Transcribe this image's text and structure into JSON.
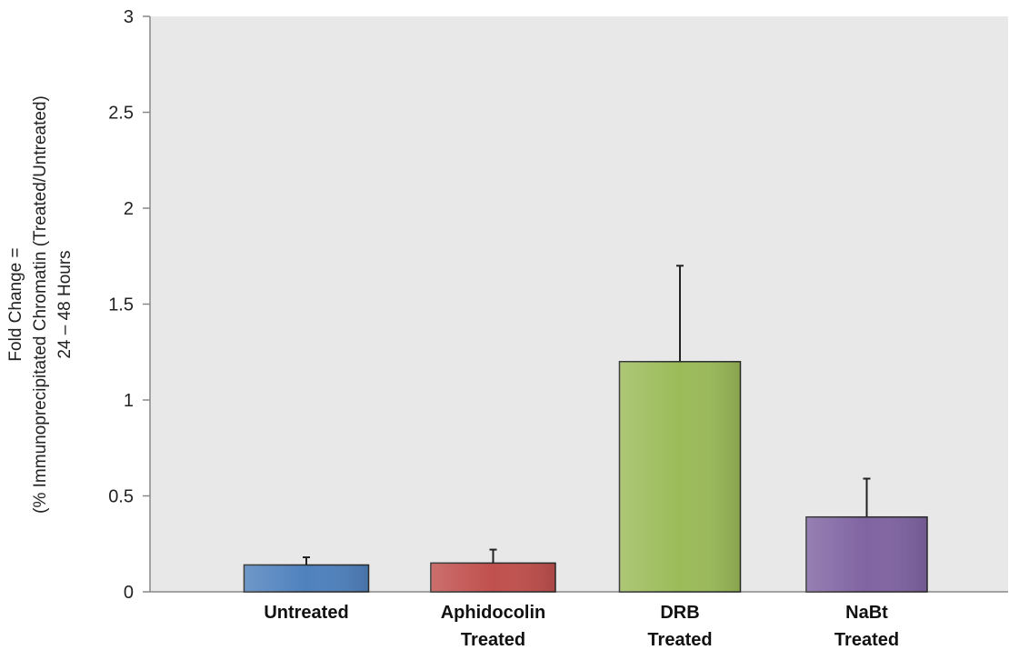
{
  "chart_data": {
    "type": "bar",
    "categories": [
      [
        "Untreated"
      ],
      [
        "Aphidocolin",
        "Treated"
      ],
      [
        "DRB",
        "Treated"
      ],
      [
        "NaBt",
        "Treated"
      ]
    ],
    "values": [
      0.14,
      0.15,
      1.2,
      0.39
    ],
    "error_upper": [
      0.18,
      0.22,
      1.7,
      0.59
    ],
    "colors": [
      "#4f81bd",
      "#c0504d",
      "#9bbb59",
      "#8064a2"
    ],
    "ylabel": [
      "Fold Change =",
      "(% Immunoprecipitated Chromatin (Treated/Untreated)",
      "24 – 48 Hours"
    ],
    "ylim": [
      0,
      3
    ],
    "yticks": [
      0,
      0.5,
      1,
      1.5,
      2,
      2.5,
      3
    ],
    "ytick_labels": [
      "0",
      "0.5",
      "1",
      "1.5",
      "2",
      "2.5",
      "3"
    ],
    "plot_background": "#e8e8e8",
    "grid": false,
    "legend": false
  }
}
